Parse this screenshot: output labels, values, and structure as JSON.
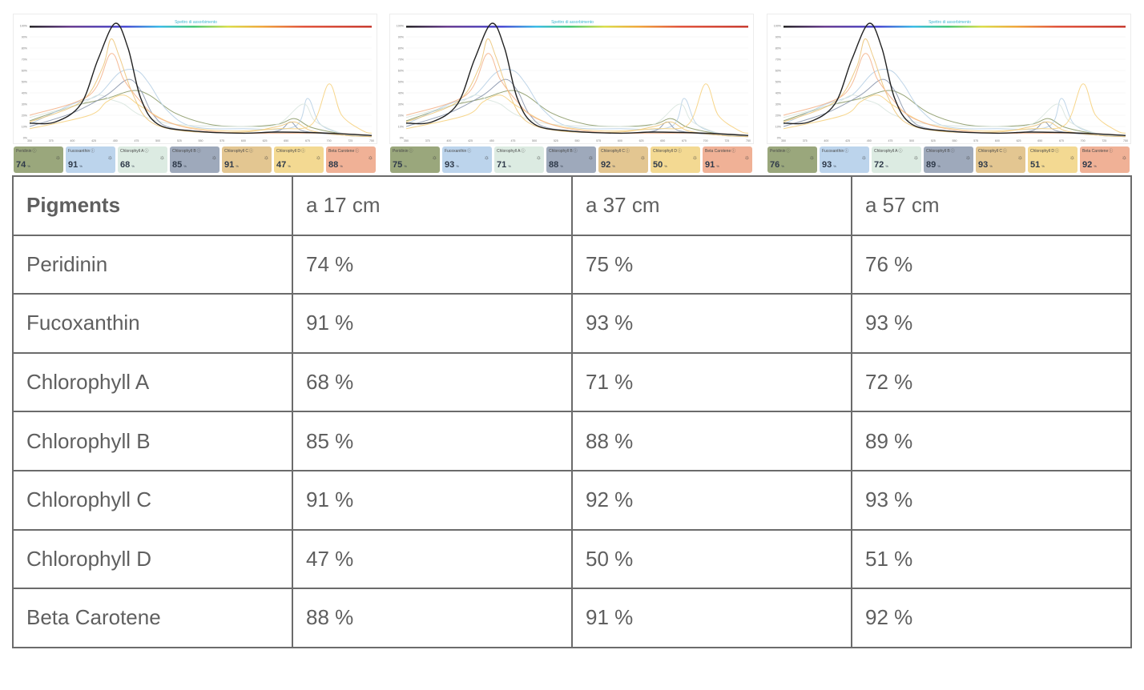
{
  "chart_data": [
    {
      "type": "line",
      "title": "Spettro di assorbimento",
      "y_ticks": [
        "0%",
        "10%",
        "20%",
        "30%",
        "40%",
        "50%",
        "60%",
        "70%",
        "80%",
        "90%",
        "100%"
      ],
      "x_ticks": [
        "350",
        "375",
        "400",
        "425",
        "450",
        "475",
        "500",
        "525",
        "550",
        "575",
        "600",
        "625",
        "650",
        "675",
        "700",
        "725",
        "750"
      ],
      "ylim": [
        0,
        100
      ],
      "grid": true,
      "pigments": [
        {
          "name": "Peridinin",
          "value": "74",
          "color": "#9aa77c"
        },
        {
          "name": "Fucoxanthin",
          "value": "91",
          "color": "#bcd4ec"
        },
        {
          "name": "Chlorophyll A",
          "value": "68",
          "color": "#dcebe2"
        },
        {
          "name": "Chlorophyll B",
          "value": "85",
          "color": "#9ea9bb"
        },
        {
          "name": "Chlorophyll C",
          "value": "91",
          "color": "#e3c691"
        },
        {
          "name": "Chlorophyll D",
          "value": "47",
          "color": "#f3d992"
        },
        {
          "name": "Beta Carotene",
          "value": "88",
          "color": "#f0b196"
        }
      ]
    },
    {
      "type": "line",
      "title": "Spettro di assorbimento",
      "y_ticks": [
        "0%",
        "10%",
        "20%",
        "30%",
        "40%",
        "50%",
        "60%",
        "70%",
        "80%",
        "90%",
        "100%"
      ],
      "x_ticks": [
        "350",
        "375",
        "400",
        "425",
        "450",
        "475",
        "500",
        "525",
        "550",
        "575",
        "600",
        "625",
        "650",
        "675",
        "700",
        "725",
        "750"
      ],
      "ylim": [
        0,
        100
      ],
      "grid": true,
      "pigments": [
        {
          "name": "Peridinin",
          "value": "75",
          "color": "#9aa77c"
        },
        {
          "name": "Fucoxanthin",
          "value": "93",
          "color": "#bcd4ec"
        },
        {
          "name": "Chlorophyll A",
          "value": "71",
          "color": "#dcebe2"
        },
        {
          "name": "Chlorophyll B",
          "value": "88",
          "color": "#9ea9bb"
        },
        {
          "name": "Chlorophyll C",
          "value": "92",
          "color": "#e3c691"
        },
        {
          "name": "Chlorophyll D",
          "value": "50",
          "color": "#f3d992"
        },
        {
          "name": "Beta Carotene",
          "value": "91",
          "color": "#f0b196"
        }
      ]
    },
    {
      "type": "line",
      "title": "Spettro di assorbimento",
      "y_ticks": [
        "0%",
        "10%",
        "20%",
        "30%",
        "40%",
        "50%",
        "60%",
        "70%",
        "80%",
        "90%",
        "100%"
      ],
      "x_ticks": [
        "350",
        "375",
        "400",
        "425",
        "450",
        "475",
        "500",
        "525",
        "550",
        "575",
        "600",
        "625",
        "650",
        "675",
        "700",
        "725",
        "750"
      ],
      "ylim": [
        0,
        100
      ],
      "grid": true,
      "pigments": [
        {
          "name": "Peridinin",
          "value": "76",
          "color": "#9aa77c"
        },
        {
          "name": "Fucoxanthin",
          "value": "93",
          "color": "#bcd4ec"
        },
        {
          "name": "Chlorophyll A",
          "value": "72",
          "color": "#dcebe2"
        },
        {
          "name": "Chlorophyll B",
          "value": "89",
          "color": "#9ea9bb"
        },
        {
          "name": "Chlorophyll C",
          "value": "93",
          "color": "#e3c691"
        },
        {
          "name": "Chlorophyll D",
          "value": "51",
          "color": "#f3d992"
        },
        {
          "name": "Beta Carotene",
          "value": "92",
          "color": "#f0b196"
        }
      ]
    }
  ],
  "curves": [
    {
      "name": "Peridinin",
      "color": "#8c9a68",
      "points": [
        [
          350,
          15
        ],
        [
          400,
          28
        ],
        [
          440,
          35
        ],
        [
          470,
          42
        ],
        [
          490,
          38
        ],
        [
          520,
          22
        ],
        [
          560,
          12
        ],
        [
          600,
          10
        ],
        [
          640,
          12
        ],
        [
          660,
          17
        ],
        [
          680,
          9
        ],
        [
          720,
          3
        ],
        [
          750,
          2
        ]
      ]
    },
    {
      "name": "Fucoxanthin",
      "color": "#b8d0e6",
      "points": [
        [
          350,
          12
        ],
        [
          400,
          30
        ],
        [
          430,
          38
        ],
        [
          455,
          58
        ],
        [
          475,
          60
        ],
        [
          490,
          48
        ],
        [
          510,
          25
        ],
        [
          540,
          10
        ],
        [
          600,
          8
        ],
        [
          660,
          10
        ],
        [
          675,
          35
        ],
        [
          690,
          12
        ],
        [
          720,
          3
        ],
        [
          750,
          2
        ]
      ]
    },
    {
      "name": "Chlorophyll A",
      "color": "#d9e6df",
      "points": [
        [
          350,
          18
        ],
        [
          380,
          24
        ],
        [
          410,
          30
        ],
        [
          430,
          38
        ],
        [
          445,
          34
        ],
        [
          460,
          30
        ],
        [
          480,
          20
        ],
        [
          520,
          12
        ],
        [
          600,
          10
        ],
        [
          640,
          12
        ],
        [
          670,
          30
        ],
        [
          685,
          14
        ],
        [
          720,
          3
        ],
        [
          750,
          2
        ]
      ]
    },
    {
      "name": "Chlorophyll B",
      "color": "#8b97ad",
      "points": [
        [
          350,
          10
        ],
        [
          400,
          22
        ],
        [
          440,
          38
        ],
        [
          465,
          52
        ],
        [
          480,
          42
        ],
        [
          495,
          20
        ],
        [
          520,
          8
        ],
        [
          600,
          4
        ],
        [
          640,
          6
        ],
        [
          655,
          14
        ],
        [
          670,
          6
        ],
        [
          720,
          2
        ],
        [
          750,
          1
        ]
      ]
    },
    {
      "name": "Chlorophyll C",
      "color": "#ecc57a",
      "points": [
        [
          350,
          14
        ],
        [
          410,
          32
        ],
        [
          435,
          62
        ],
        [
          445,
          88
        ],
        [
          455,
          72
        ],
        [
          470,
          40
        ],
        [
          490,
          15
        ],
        [
          530,
          6
        ],
        [
          600,
          5
        ],
        [
          640,
          10
        ],
        [
          660,
          14
        ],
        [
          680,
          6
        ],
        [
          720,
          2
        ],
        [
          750,
          1
        ]
      ]
    },
    {
      "name": "Chlorophyll D",
      "color": "#f6d27f",
      "points": [
        [
          350,
          8
        ],
        [
          420,
          20
        ],
        [
          440,
          32
        ],
        [
          460,
          38
        ],
        [
          480,
          28
        ],
        [
          520,
          12
        ],
        [
          580,
          6
        ],
        [
          640,
          8
        ],
        [
          680,
          12
        ],
        [
          700,
          48
        ],
        [
          715,
          20
        ],
        [
          740,
          6
        ],
        [
          750,
          4
        ]
      ]
    },
    {
      "name": "Beta Carotene",
      "color": "#f4b48c",
      "points": [
        [
          350,
          20
        ],
        [
          420,
          38
        ],
        [
          445,
          75
        ],
        [
          460,
          52
        ],
        [
          480,
          32
        ],
        [
          500,
          18
        ],
        [
          540,
          8
        ],
        [
          600,
          4
        ],
        [
          700,
          4
        ],
        [
          750,
          2
        ]
      ]
    },
    {
      "name": "Spectrum",
      "color": "#222222",
      "points": [
        [
          350,
          13
        ],
        [
          380,
          14
        ],
        [
          410,
          30
        ],
        [
          430,
          70
        ],
        [
          450,
          102
        ],
        [
          465,
          80
        ],
        [
          480,
          35
        ],
        [
          500,
          12
        ],
        [
          540,
          6
        ],
        [
          600,
          4
        ],
        [
          640,
          5
        ],
        [
          700,
          4
        ],
        [
          750,
          2
        ]
      ]
    }
  ],
  "table": {
    "headers": [
      "Pigments",
      "a 17 cm",
      "a 37 cm",
      "a 57 cm"
    ],
    "rows": [
      [
        "Peridinin",
        "74 %",
        "75 %",
        "76 %"
      ],
      [
        "Fucoxanthin",
        "91 %",
        "93 %",
        "93 %"
      ],
      [
        "Chlorophyll A",
        "68 %",
        "71 %",
        "72 %"
      ],
      [
        "Chlorophyll B",
        "85 %",
        "88 %",
        "89 %"
      ],
      [
        "Chlorophyll C",
        "91 %",
        "92 %",
        "93 %"
      ],
      [
        "Chlorophyll D",
        "47 %",
        "50 %",
        "51 %"
      ],
      [
        "Beta Carotene",
        "88 %",
        "91 %",
        "92 %"
      ]
    ]
  }
}
